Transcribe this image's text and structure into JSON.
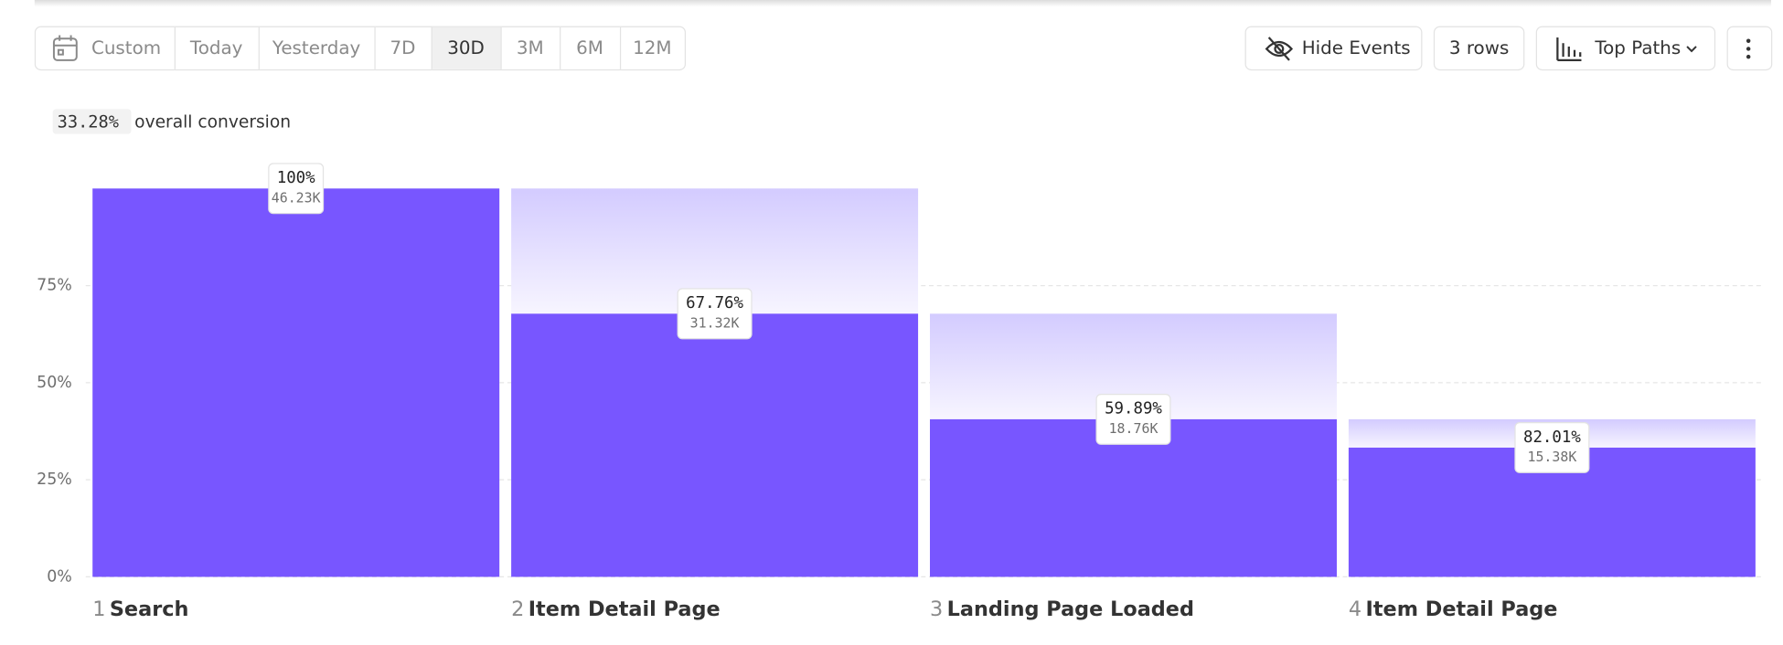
{
  "toolbar": {
    "date_ranges": [
      "Custom",
      "Today",
      "Yesterday",
      "7D",
      "30D",
      "3M",
      "6M",
      "12M"
    ],
    "selected_index": 4,
    "buttons": [
      "Hide Events",
      "3 rows",
      "Top Paths"
    ]
  },
  "summary": {
    "conversion": "33.28%",
    "label": "overall conversion"
  },
  "chart_data": {
    "type": "funnel",
    "step_numbers": [
      "1",
      "2",
      "3",
      "4"
    ],
    "categories": [
      "Search",
      "Item Detail Page",
      "Landing Page Loaded",
      "Item Detail Page"
    ],
    "values": [
      100,
      67.76,
      40.58,
      33.28
    ],
    "step_conversion_labels": [
      "100%",
      "67.76%",
      "59.89%",
      "82.01%"
    ],
    "count_labels": [
      "46.23K",
      "31.32K",
      "18.76K",
      "15.38K"
    ],
    "color": "#7856ff",
    "ylim": [
      0,
      100
    ],
    "yticks": [
      {
        "value": 0,
        "label": "0%"
      },
      {
        "value": 25,
        "label": "25%"
      },
      {
        "value": 50,
        "label": "50%"
      },
      {
        "value": 75,
        "label": "75%"
      }
    ],
    "grid": true
  }
}
